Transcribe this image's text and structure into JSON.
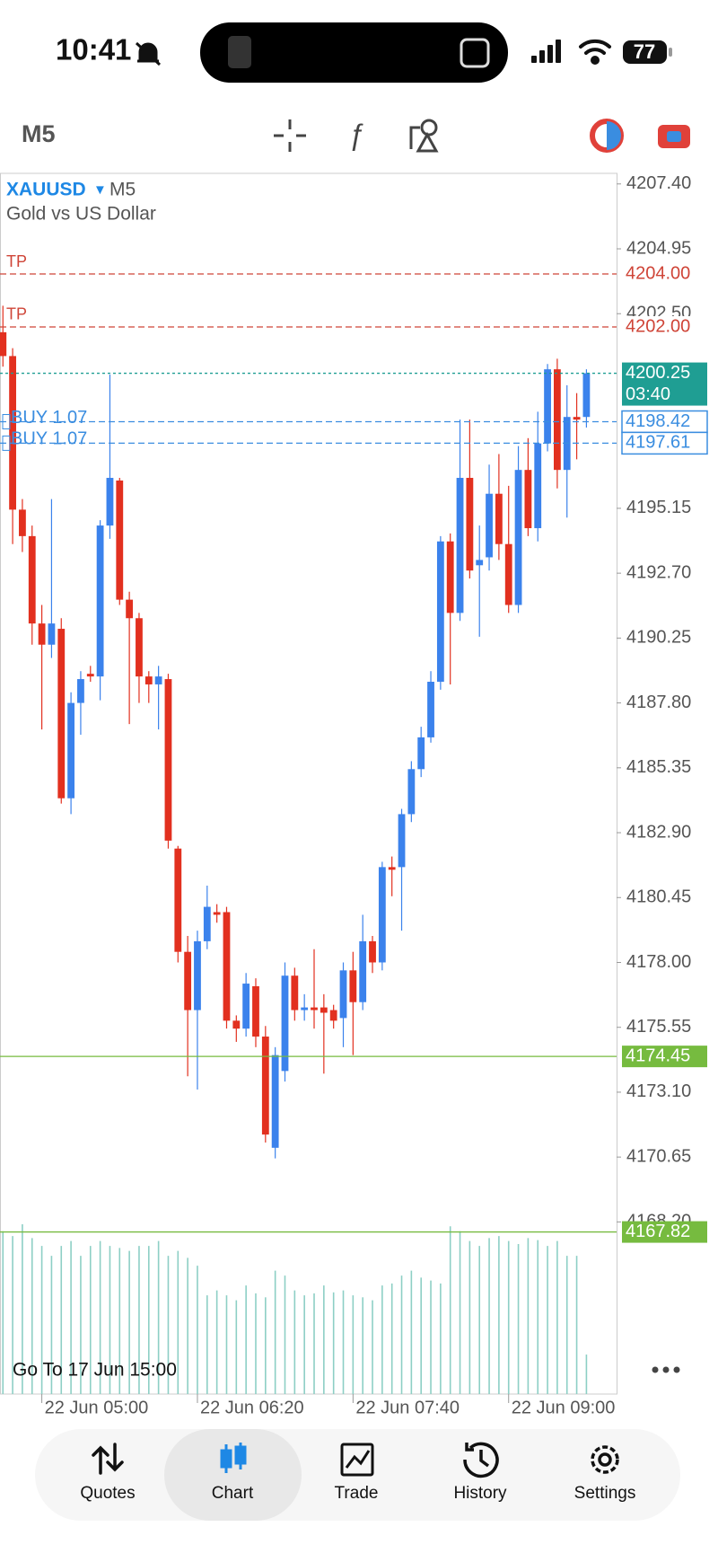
{
  "status_bar": {
    "time": "10:41",
    "battery": "77"
  },
  "toolbar": {
    "timeframe": "M5"
  },
  "chart_data": {
    "type": "candlestick",
    "symbol": "XAUUSD",
    "timeframe": "M5",
    "description": "Gold vs US Dollar",
    "open": [
      4201.8,
      4200.9,
      4195.1,
      4194.1,
      4190.8,
      4190.0,
      4190.6,
      4184.2,
      4187.8,
      4188.9,
      4188.8,
      4194.5,
      4196.2,
      4191.7,
      4191.0,
      4188.8,
      4188.5,
      4188.7,
      4182.3,
      4178.4,
      4176.2,
      4178.8,
      4179.9,
      4179.9,
      4175.8,
      4175.5,
      4177.1,
      4175.2,
      4171.0,
      4173.9,
      4177.5,
      4176.2,
      4176.3,
      4176.3,
      4176.2,
      4175.9,
      4177.7,
      4176.5,
      4178.8,
      4178.0,
      4181.6,
      4181.6,
      4183.6,
      4185.3,
      4186.5,
      4188.6,
      4193.9,
      4191.2,
      4196.3,
      4193.0,
      4193.3,
      4195.7,
      4193.8,
      4191.5,
      4196.6,
      4194.4,
      4197.6,
      4200.4,
      4196.6,
      4198.6,
      4198.6
    ],
    "high": [
      4202.8,
      4201.2,
      4195.5,
      4194.5,
      4191.5,
      4195.5,
      4191.0,
      4188.2,
      4189.0,
      4189.2,
      4194.7,
      4200.2,
      4196.3,
      4192.0,
      4191.2,
      4189.0,
      4189.2,
      4188.9,
      4182.4,
      4179.0,
      4179.2,
      4180.9,
      4180.2,
      4180.1,
      4176.0,
      4177.6,
      4177.4,
      4175.6,
      4174.8,
      4178.0,
      4177.8,
      4176.8,
      4178.5,
      4176.8,
      4176.4,
      4178.0,
      4178.4,
      4179.8,
      4179.0,
      4181.8,
      4182.0,
      4183.8,
      4185.6,
      4186.9,
      4189.0,
      4194.1,
      4194.2,
      4198.5,
      4198.5,
      4194.5,
      4196.8,
      4197.2,
      4196.0,
      4197.5,
      4197.8,
      4198.8,
      4200.6,
      4200.8,
      4199.8,
      4199.5,
      4200.4
    ],
    "low": [
      4200.5,
      4193.8,
      4193.5,
      4190.0,
      4186.8,
      4189.5,
      4184.0,
      4183.6,
      4186.6,
      4188.6,
      4187.9,
      4194.0,
      4191.5,
      4187.0,
      4187.8,
      4187.8,
      4186.8,
      4182.3,
      4178.0,
      4173.7,
      4173.2,
      4178.5,
      4179.5,
      4175.5,
      4175.0,
      4175.2,
      4174.8,
      4171.2,
      4170.6,
      4173.5,
      4175.8,
      4175.8,
      4175.5,
      4173.8,
      4175.5,
      4174.8,
      4174.5,
      4176.2,
      4177.6,
      4177.7,
      4180.5,
      4179.2,
      4183.3,
      4185.0,
      4186.3,
      4188.3,
      4188.5,
      4190.9,
      4192.5,
      4190.3,
      4192.8,
      4193.2,
      4191.2,
      4191.2,
      4194.1,
      4193.9,
      4197.3,
      4195.9,
      4194.8,
      4197.0,
      4198.2
    ],
    "close": [
      4200.9,
      4195.1,
      4194.1,
      4190.8,
      4190.0,
      4190.8,
      4184.2,
      4187.8,
      4188.7,
      4188.8,
      4194.5,
      4196.3,
      4191.7,
      4191.0,
      4188.8,
      4188.5,
      4188.8,
      4182.6,
      4178.4,
      4176.2,
      4178.8,
      4180.1,
      4179.8,
      4175.8,
      4175.5,
      4177.2,
      4175.2,
      4171.5,
      4174.5,
      4177.5,
      4176.2,
      4176.3,
      4176.2,
      4176.1,
      4175.8,
      4177.7,
      4176.5,
      4178.8,
      4178.0,
      4181.6,
      4181.5,
      4183.6,
      4185.3,
      4186.5,
      4188.6,
      4193.9,
      4191.2,
      4196.3,
      4192.8,
      4193.2,
      4195.7,
      4193.8,
      4191.5,
      4196.6,
      4194.4,
      4197.6,
      4200.4,
      4196.6,
      4198.6,
      4198.5,
      4200.25
    ],
    "up_color": "#3b82ec",
    "down_color": "#e2301f",
    "ylim": [
      4161.7,
      4207.8
    ],
    "yticks": [
      {
        "value": 4207.4,
        "label": "4207.40"
      },
      {
        "value": 4204.95,
        "label": "4204.95"
      },
      {
        "value": 4202.5,
        "label": "4202.50"
      },
      {
        "value": 4195.15,
        "label": "4195.15"
      },
      {
        "value": 4192.7,
        "label": "4192.70"
      },
      {
        "value": 4190.25,
        "label": "4190.25"
      },
      {
        "value": 4187.8,
        "label": "4187.80"
      },
      {
        "value": 4185.35,
        "label": "4185.35"
      },
      {
        "value": 4182.9,
        "label": "4182.90"
      },
      {
        "value": 4180.45,
        "label": "4180.45"
      },
      {
        "value": 4178,
        "label": "4178.00"
      },
      {
        "value": 4175.55,
        "label": "4175.55"
      },
      {
        "value": 4173.1,
        "label": "4173.10"
      },
      {
        "value": 4170.65,
        "label": "4170.65"
      },
      {
        "value": 4168.2,
        "label": "4168.20"
      }
    ],
    "xlim": [
      -0.3,
      63.1
    ],
    "xticks": [
      {
        "value": 4,
        "label": "22 Jun 05:00"
      },
      {
        "value": 20,
        "label": "22 Jun 06:20"
      },
      {
        "value": 36,
        "label": "22 Jun 07:40"
      },
      {
        "value": 52,
        "label": "22 Jun 09:00"
      }
    ],
    "price_lines": [
      {
        "name": "TP",
        "value": 4204,
        "value_label": "4204.00",
        "color": "#cf4437",
        "line_style": "dashed",
        "label_style": "plain"
      },
      {
        "name": "TP",
        "value": 4202,
        "value_label": "4202.00",
        "color": "#cf4437",
        "line_style": "dashed",
        "label_style": "plain"
      },
      {
        "value": 4200.25,
        "value_label": "4200.25",
        "countdown": "03:40",
        "color": "#1f9e93",
        "line_style": "dotted",
        "label_style": "filled"
      },
      {
        "name": "BUY 1.07",
        "value": 4198.42,
        "value_label": "4198.42",
        "color": "#3a8de0",
        "line_style": "dashed",
        "label_style": "outline"
      },
      {
        "name": "BUY 1.07",
        "value": 4197.61,
        "value_label": "4197.61",
        "color": "#3a8de0",
        "line_style": "dashed",
        "label_style": "outline"
      },
      {
        "value": 4174.45,
        "value_label": "4174.45",
        "color": "#76bb3f",
        "line_style": "solid",
        "label_style": "filled"
      },
      {
        "value": 4167.82,
        "value_label": "4167.82",
        "color": "#76bb3f",
        "line_style": "solid",
        "label_style": "filled"
      }
    ],
    "volumes": [
      165,
      160,
      172,
      158,
      150,
      140,
      150,
      155,
      140,
      150,
      155,
      150,
      148,
      145,
      150,
      150,
      155,
      140,
      145,
      138,
      130,
      100,
      105,
      100,
      95,
      110,
      102,
      98,
      125,
      120,
      105,
      100,
      102,
      110,
      103,
      105,
      100,
      98,
      95,
      110,
      112,
      120,
      125,
      118,
      115,
      112,
      170,
      165,
      155,
      150,
      158,
      160,
      155,
      152,
      158,
      156,
      150,
      155,
      140,
      140,
      40
    ],
    "volume_color": "#8dcfc5"
  },
  "goto": "Go To 17 Jun 15:00",
  "nav": {
    "items": [
      "Quotes",
      "Chart",
      "Trade",
      "History",
      "Settings"
    ],
    "active": 1
  }
}
